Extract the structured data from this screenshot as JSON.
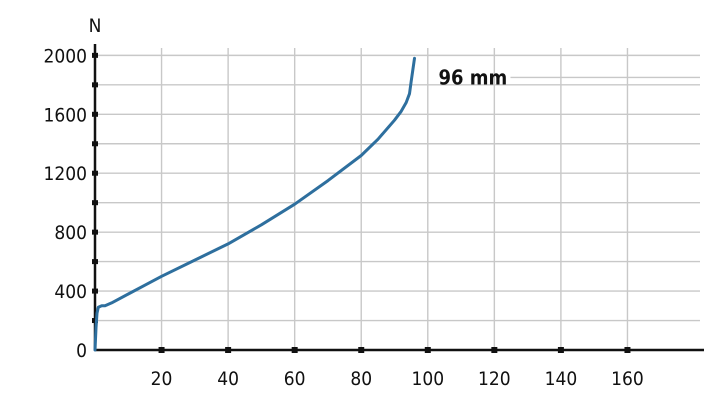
{
  "chart_data": {
    "type": "line",
    "title": "",
    "xlabel": "",
    "ylabel": "N",
    "xlim": [
      0,
      183
    ],
    "ylim": [
      0,
      2050
    ],
    "x_ticks": [
      20,
      40,
      60,
      80,
      100,
      120,
      140,
      160
    ],
    "y_ticks": [
      0,
      400,
      800,
      1200,
      1600,
      2000
    ],
    "y_minor_step": 200,
    "grid": true,
    "legend": "none",
    "series": [
      {
        "color": "#2e6f9e",
        "points": [
          [
            0,
            0
          ],
          [
            0.3,
            150
          ],
          [
            0.6,
            250
          ],
          [
            1,
            290
          ],
          [
            2,
            300
          ],
          [
            3,
            300
          ],
          [
            5,
            320
          ],
          [
            10,
            380
          ],
          [
            15,
            440
          ],
          [
            20,
            500
          ],
          [
            30,
            610
          ],
          [
            40,
            720
          ],
          [
            50,
            850
          ],
          [
            60,
            990
          ],
          [
            70,
            1150
          ],
          [
            80,
            1320
          ],
          [
            85,
            1430
          ],
          [
            90,
            1560
          ],
          [
            92,
            1620
          ],
          [
            93.5,
            1680
          ],
          [
            94.5,
            1740
          ],
          [
            95,
            1820
          ],
          [
            95.5,
            1900
          ],
          [
            96,
            1980
          ]
        ]
      }
    ],
    "annotations": [
      {
        "text": "96 mm",
        "x": 96,
        "y": 1850
      }
    ]
  }
}
